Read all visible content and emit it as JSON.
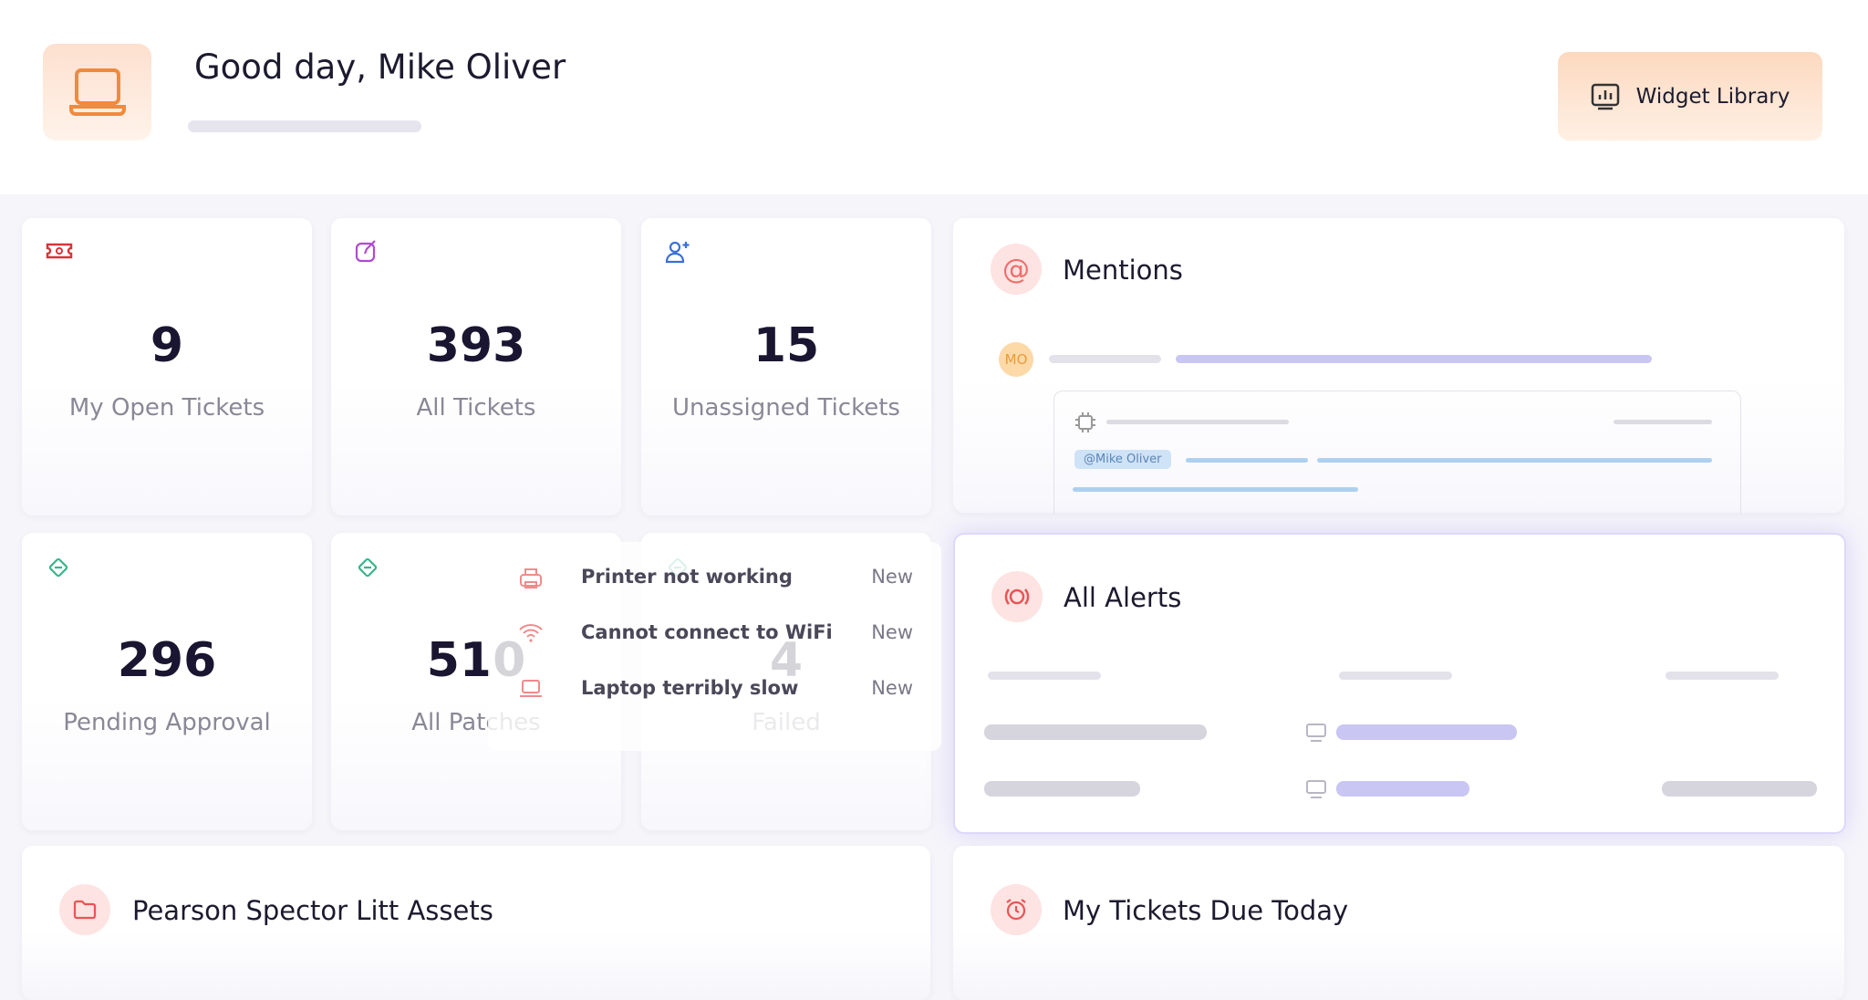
{
  "header": {
    "greeting": "Good day, Mike Oliver",
    "button": "Widget Library"
  },
  "stats": [
    {
      "value": 9,
      "label": "My Open Tickets"
    },
    {
      "value": 393,
      "label": "All Tickets"
    },
    {
      "value": 15,
      "label": "Unassigned Tickets"
    },
    {
      "value": 296,
      "label": "Pending Approval"
    },
    {
      "value": 510,
      "label": "All Patches"
    },
    {
      "value": 4,
      "label": "Failed"
    }
  ],
  "popup": [
    {
      "title": "Printer not working",
      "status": "New"
    },
    {
      "title": "Cannot connect to WiFi",
      "status": "New"
    },
    {
      "title": "Laptop terribly slow",
      "status": "New"
    }
  ],
  "mentions": {
    "title": "Mentions",
    "avatar": "MO",
    "tag": "@Mike Oliver"
  },
  "alerts": {
    "title": "All Alerts"
  },
  "bottom": [
    "Pearson Spector Litt Assets",
    "My Tickets Due Today"
  ]
}
